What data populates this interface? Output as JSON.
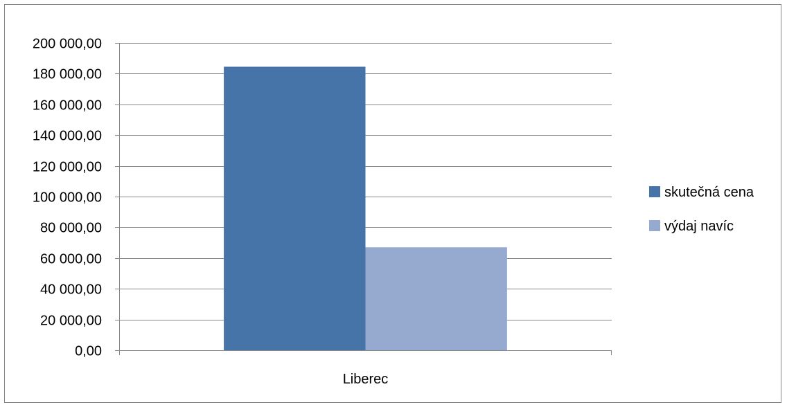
{
  "chart_data": {
    "type": "bar",
    "categories": [
      "Liberec"
    ],
    "series": [
      {
        "name": "skutečná cena",
        "values": [
          184500
        ],
        "color": "#4673A8"
      },
      {
        "name": "výdaj navíc",
        "values": [
          67000
        ],
        "color": "#96AAD0"
      }
    ],
    "ylim": [
      0,
      200000
    ],
    "y_tick_step": 20000,
    "y_tick_labels": [
      "0,00",
      "20 000,00",
      "40 000,00",
      "60 000,00",
      "80 000,00",
      "100 000,00",
      "120 000,00",
      "140 000,00",
      "160 000,00",
      "180 000,00",
      "200 000,00"
    ],
    "grid": true,
    "legend_position": "right",
    "title": "",
    "xlabel": "",
    "ylabel": ""
  },
  "colors": {
    "gridline": "#868686",
    "border": "#868686"
  }
}
